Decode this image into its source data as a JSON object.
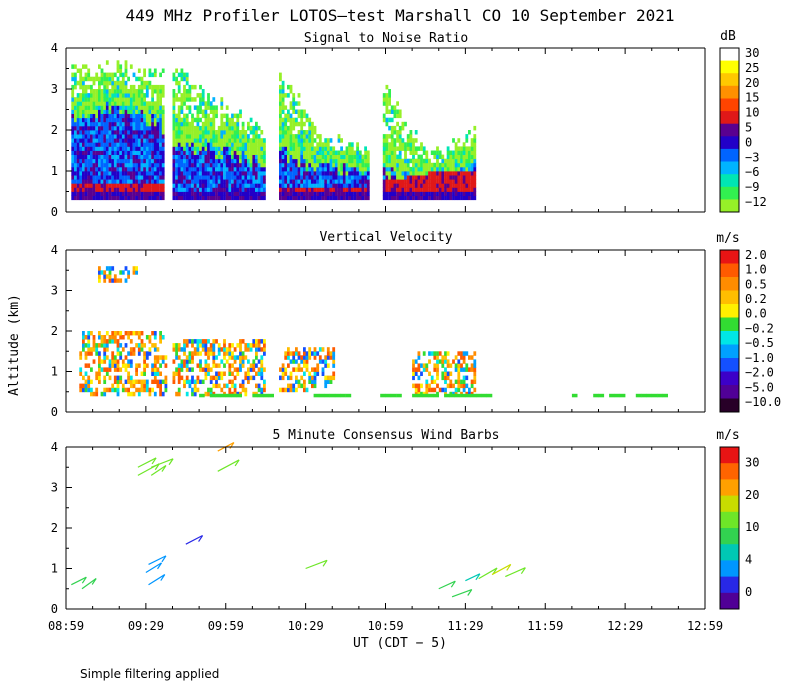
{
  "title": "449 MHz Profiler LOTOS—test Marshall CO 10 September 2021",
  "footer": "Simple filtering applied",
  "chart_data": [
    {
      "type": "heatmap",
      "title": "Signal to Noise Ratio",
      "ylabel": "",
      "ylim": [
        0,
        4
      ],
      "yticks": [
        "0",
        "1",
        "2",
        "3",
        "4"
      ],
      "colorbar_unit": "dB",
      "colorbar_labels": [
        "30",
        "25",
        "20",
        "15",
        "10",
        "5",
        "0",
        "−3",
        "−6",
        "−9",
        "−12"
      ],
      "colorbar_colors": [
        "#ffffff",
        "#ffff00",
        "#ffc800",
        "#ff9000",
        "#ff4400",
        "#e01818",
        "#5a0090",
        "#2200c8",
        "#0064ff",
        "#00b4ff",
        "#00e6b4",
        "#32f050",
        "#96f028"
      ],
      "x_segments_minutes": [
        [
          2,
          37
        ],
        [
          40,
          75
        ],
        [
          80,
          114
        ],
        [
          119,
          154
        ]
      ],
      "profile": {
        "x_minutes": [
          2,
          20,
          37,
          40,
          57,
          75,
          80,
          97,
          114,
          119,
          136,
          154
        ],
        "top_km": [
          3.6,
          3.5,
          3.3,
          3.4,
          2.6,
          2.0,
          3.3,
          1.7,
          1.5,
          3.0,
          1.3,
          2.0
        ],
        "noise_top_km": [
          2.3,
          2.5,
          2.0,
          1.7,
          1.4,
          1.2,
          1.4,
          1.0,
          1.0,
          0.9,
          0.5,
          1.2
        ],
        "strong_top_km": [
          0.7,
          0.7,
          0.7,
          0.5,
          0.5,
          0.5,
          0.6,
          0.6,
          0.6,
          0.7,
          0.9,
          1.0
        ]
      }
    },
    {
      "type": "heatmap",
      "title": "Vertical Velocity",
      "ylabel": "Altitude (km)",
      "ylim": [
        0,
        4
      ],
      "yticks": [
        "0",
        "1",
        "2",
        "3",
        "4"
      ],
      "colorbar_unit": "m/s",
      "colorbar_labels": [
        "2.0",
        "1.0",
        "0.5",
        "0.2",
        "0.0",
        "−0.2",
        "−0.5",
        "−1.0",
        "−2.0",
        "−5.0",
        "−10.0"
      ],
      "colorbar_colors": [
        "#e81414",
        "#ff5a00",
        "#ff8c00",
        "#ffbe00",
        "#fff000",
        "#32dc32",
        "#00e6e6",
        "#00a0ff",
        "#1450ff",
        "#3c00c8",
        "#500096",
        "#280028"
      ],
      "regions": [
        {
          "x_minutes": [
            5,
            38
          ],
          "alt_km": [
            0.4,
            2.0
          ]
        },
        {
          "x_minutes": [
            40,
            75
          ],
          "alt_km": [
            0.4,
            1.8
          ]
        },
        {
          "x_minutes": [
            80,
            101
          ],
          "alt_km": [
            0.5,
            1.6
          ]
        },
        {
          "x_minutes": [
            130,
            154
          ],
          "alt_km": [
            0.4,
            1.5
          ]
        },
        {
          "x_minutes": [
            12,
            27
          ],
          "alt_km": [
            3.2,
            3.6
          ]
        }
      ]
    },
    {
      "type": "scatter",
      "title": "5 Minute Consensus Wind Barbs",
      "ylabel": "",
      "ylim": [
        0,
        4
      ],
      "yticks": [
        "0",
        "1",
        "2",
        "3",
        "4"
      ],
      "colorbar_unit": "m/s",
      "colorbar_labels": [
        "30",
        "20",
        "10",
        "4",
        "0"
      ],
      "colorbar_colors": [
        "#e81414",
        "#ff6400",
        "#ffa000",
        "#c8dc00",
        "#6ee628",
        "#32d250",
        "#00c8b4",
        "#0096ff",
        "#2828e6",
        "#500096"
      ],
      "barbs": [
        {
          "x_min": 2,
          "alt_km": 0.6,
          "color": "#32d250"
        },
        {
          "x_min": 6,
          "alt_km": 0.5,
          "color": "#32d250"
        },
        {
          "x_min": 30,
          "alt_km": 0.9,
          "color": "#0096ff"
        },
        {
          "x_min": 31,
          "alt_km": 1.1,
          "color": "#0096ff"
        },
        {
          "x_min": 31,
          "alt_km": 0.6,
          "color": "#0096ff"
        },
        {
          "x_min": 45,
          "alt_km": 1.6,
          "color": "#2828e6"
        },
        {
          "x_min": 90,
          "alt_km": 1.0,
          "color": "#6ee628"
        },
        {
          "x_min": 27,
          "alt_km": 3.5,
          "color": "#6ee628"
        },
        {
          "x_min": 27,
          "alt_km": 3.3,
          "color": "#6ee628"
        },
        {
          "x_min": 32,
          "alt_km": 3.5,
          "color": "#6ee628"
        },
        {
          "x_min": 32,
          "alt_km": 3.3,
          "color": "#6ee628"
        },
        {
          "x_min": 57,
          "alt_km": 3.9,
          "color": "#ffa000"
        },
        {
          "x_min": 57,
          "alt_km": 3.4,
          "color": "#6ee628"
        },
        {
          "x_min": 140,
          "alt_km": 0.5,
          "color": "#32d250"
        },
        {
          "x_min": 145,
          "alt_km": 0.3,
          "color": "#32d250"
        },
        {
          "x_min": 150,
          "alt_km": 0.7,
          "color": "#00c8b4"
        },
        {
          "x_min": 155,
          "alt_km": 0.75,
          "color": "#6ee628"
        },
        {
          "x_min": 160,
          "alt_km": 0.85,
          "color": "#c8dc00"
        },
        {
          "x_min": 165,
          "alt_km": 0.8,
          "color": "#6ee628"
        }
      ]
    }
  ],
  "x_axis": {
    "ticks": [
      "08:59",
      "09:29",
      "09:59",
      "10:29",
      "10:59",
      "11:29",
      "11:59",
      "12:29",
      "12:59"
    ],
    "xlim_minutes": [
      0,
      240
    ],
    "label": "UT  (CDT − 5)"
  }
}
